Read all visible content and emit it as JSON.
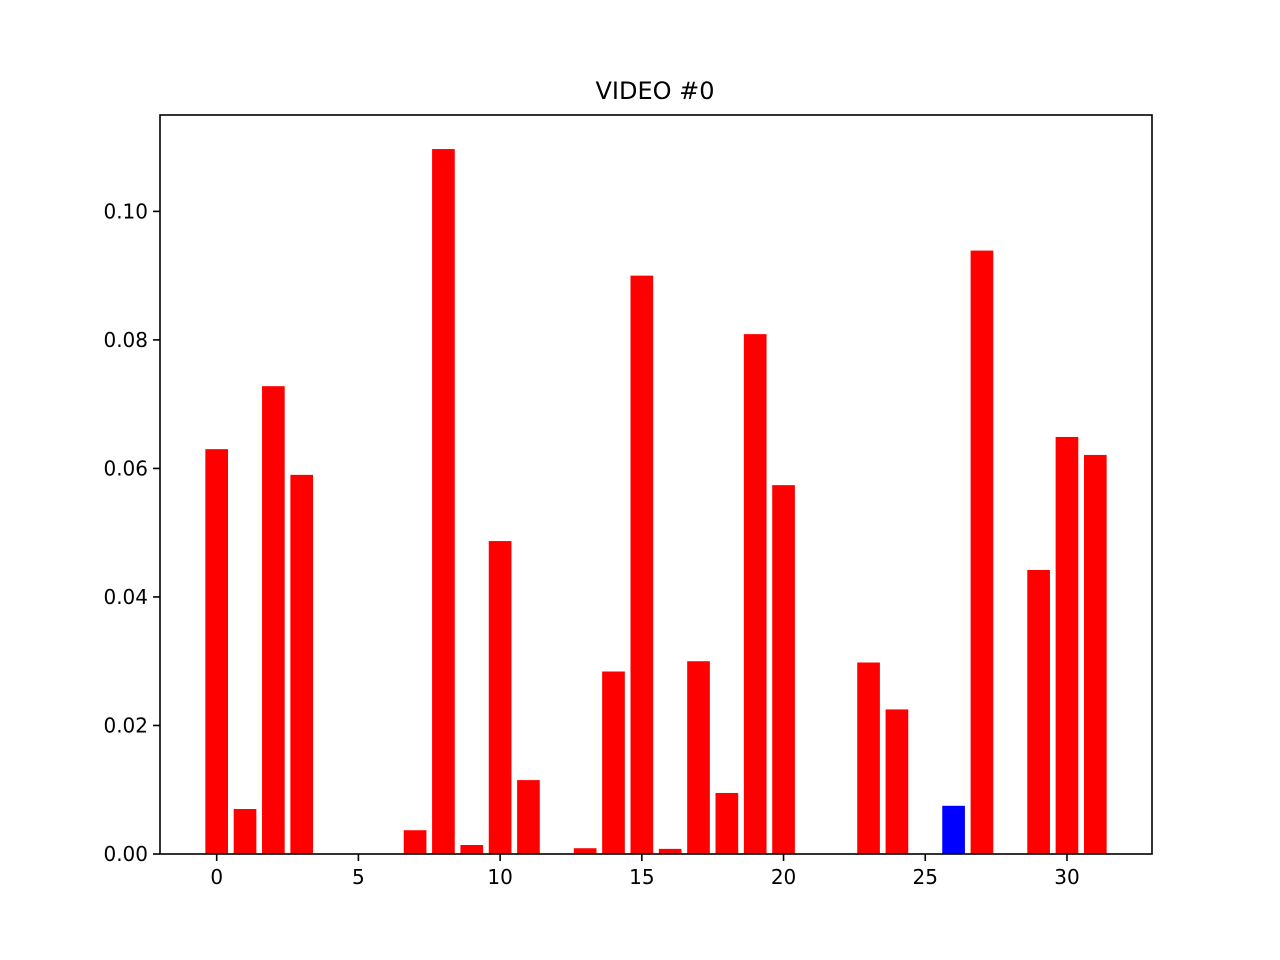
{
  "chart_data": {
    "type": "bar",
    "title": "VIDEO #0",
    "xlabel": "",
    "ylabel": "",
    "xlim": [
      -2.0,
      33.0
    ],
    "ylim": [
      0.0,
      0.115
    ],
    "x_ticks": [
      0,
      5,
      10,
      15,
      20,
      25,
      30
    ],
    "x_tick_labels": [
      "0",
      "5",
      "10",
      "15",
      "20",
      "25",
      "30"
    ],
    "y_ticks": [
      0.0,
      0.02,
      0.04,
      0.06,
      0.08,
      0.1
    ],
    "y_tick_labels": [
      "0.00",
      "0.02",
      "0.04",
      "0.06",
      "0.08",
      "0.10"
    ],
    "grid": false,
    "legend": "none",
    "bar_width": 0.8,
    "default_color": "#ff0000",
    "highlight_color": "#0000ff",
    "highlight_index": 26,
    "x": [
      0,
      1,
      2,
      3,
      4,
      5,
      6,
      7,
      8,
      9,
      10,
      11,
      12,
      13,
      14,
      15,
      16,
      17,
      18,
      19,
      20,
      21,
      22,
      23,
      24,
      25,
      26,
      27,
      28,
      29,
      30,
      31
    ],
    "values": [
      0.063,
      0.007,
      0.0728,
      0.059,
      0.0,
      0.0,
      0.0,
      0.0037,
      0.1097,
      0.0014,
      0.0487,
      0.0115,
      0.0,
      0.0009,
      0.0284,
      0.09,
      0.0008,
      0.03,
      0.0095,
      0.0809,
      0.0574,
      0.0,
      0.0,
      0.0298,
      0.0225,
      0.0,
      0.0075,
      0.0939,
      0.0,
      0.0442,
      0.0649,
      0.0621
    ]
  }
}
